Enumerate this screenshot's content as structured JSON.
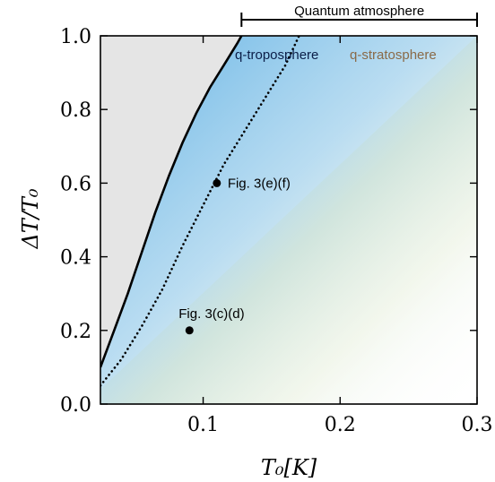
{
  "chart_data": {
    "type": "line",
    "xlabel": "T₀[K]",
    "ylabel": "ΔT/T₀",
    "xlim": [
      0.025,
      0.3
    ],
    "ylim": [
      0.0,
      1.0
    ],
    "x_ticks": [
      "0.1",
      "0.2",
      "0.3"
    ],
    "x_tick_values": [
      0.1,
      0.2,
      0.3
    ],
    "y_ticks": [
      "0.0",
      "0.2",
      "0.4",
      "0.6",
      "0.8",
      "1.0"
    ],
    "y_tick_values": [
      0.0,
      0.2,
      0.4,
      0.6,
      0.8,
      1.0
    ],
    "grid": false,
    "series": [
      {
        "style": "solid",
        "color": "#000000",
        "x": [
          0.025,
          0.035,
          0.045,
          0.055,
          0.065,
          0.075,
          0.085,
          0.095,
          0.105,
          0.115,
          0.125,
          0.128
        ],
        "y": [
          0.1,
          0.2,
          0.3,
          0.41,
          0.52,
          0.62,
          0.71,
          0.79,
          0.86,
          0.92,
          0.98,
          1.0
        ]
      },
      {
        "style": "dotted",
        "color": "#000000",
        "x": [
          0.025,
          0.04,
          0.055,
          0.07,
          0.085,
          0.1,
          0.115,
          0.13,
          0.145,
          0.16,
          0.17
        ],
        "y": [
          0.05,
          0.12,
          0.21,
          0.31,
          0.43,
          0.54,
          0.65,
          0.74,
          0.83,
          0.92,
          1.0
        ]
      }
    ],
    "points": [
      {
        "x": 0.09,
        "y": 0.2,
        "label": "Fig. 3(c)(d)"
      },
      {
        "x": 0.11,
        "y": 0.6,
        "label": "Fig. 3(e)(f)"
      }
    ],
    "annotations": {
      "top_bar_label": "Quantum atmosphere",
      "top_bar_range": [
        0.128,
        0.3
      ],
      "region_left": "q-troposphere",
      "region_right": "q-stratosphere"
    },
    "colors": {
      "classical_region": "#e5e5e5",
      "troposphere": "#5aaee3",
      "stratosphere": "#fff4b0",
      "troposphere_text": "#0b1e48",
      "stratosphere_text": "#8a6a48"
    }
  }
}
